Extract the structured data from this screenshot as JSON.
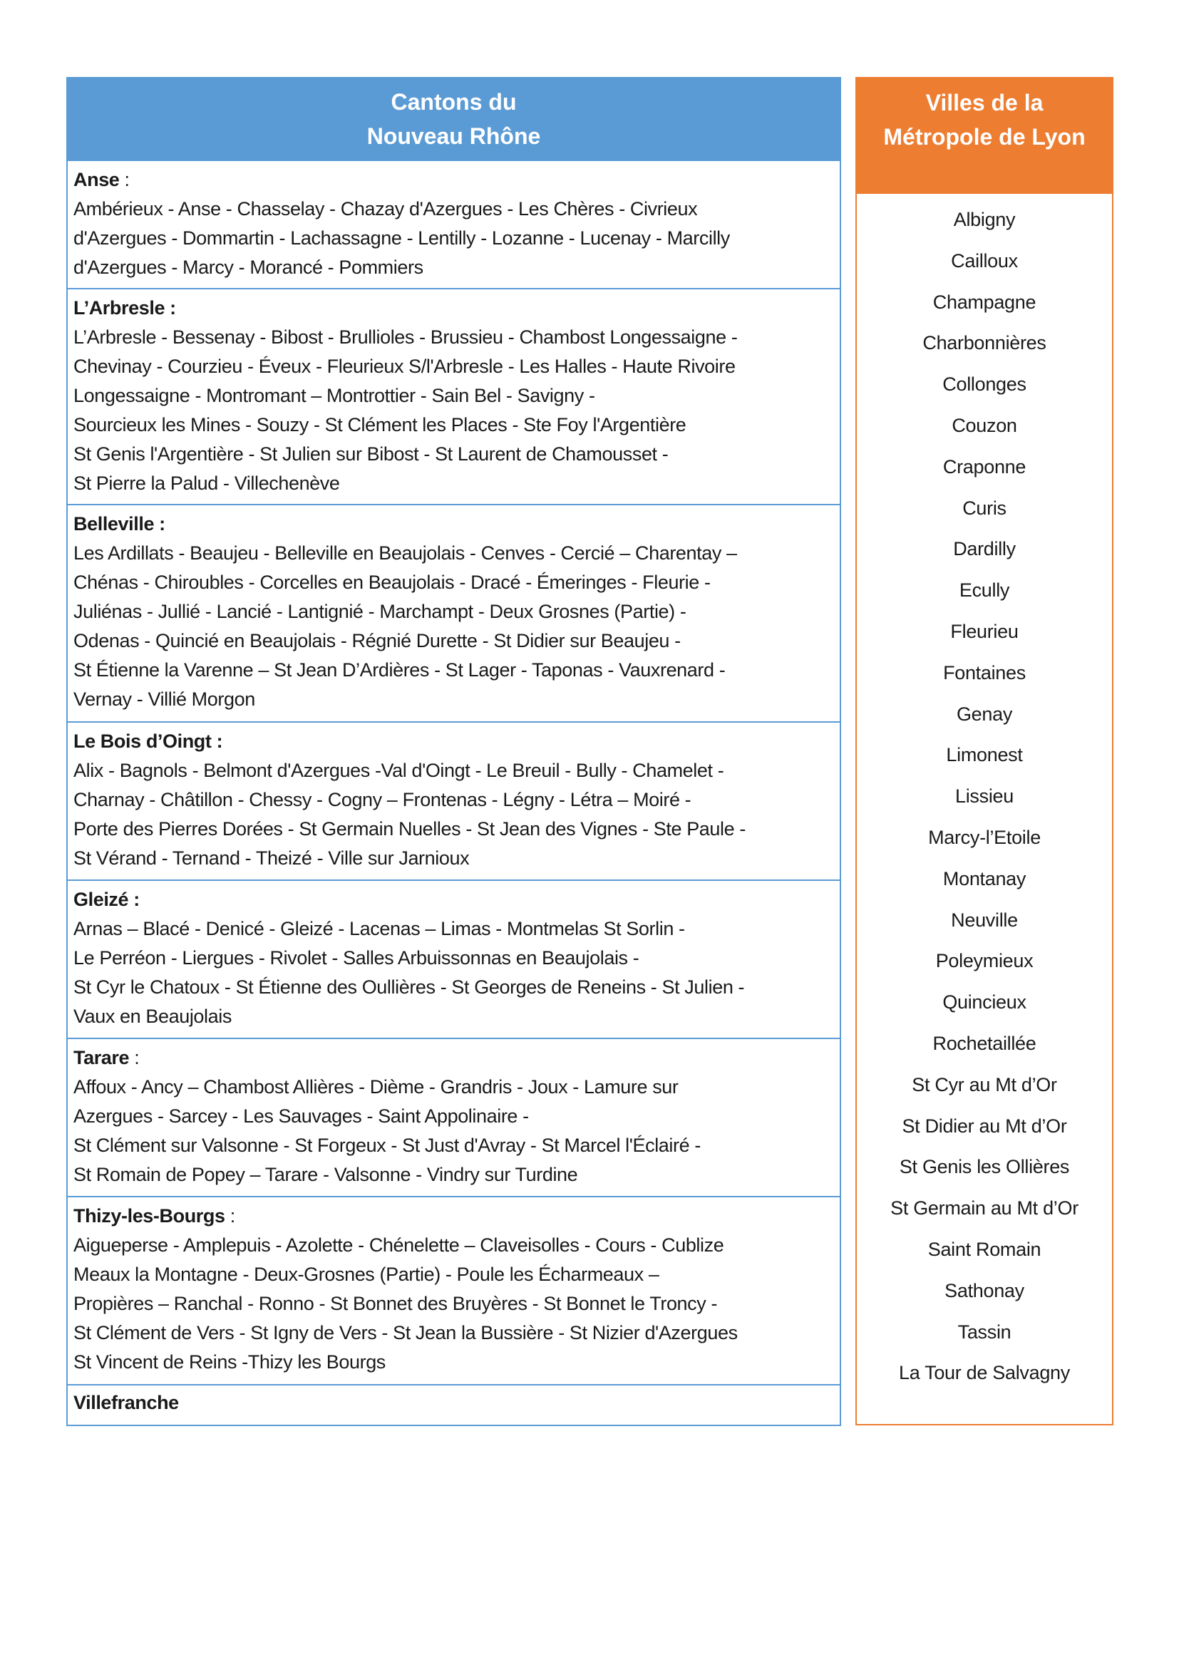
{
  "left_header": {
    "line1": "Cantons du",
    "line2": "Nouveau Rhône"
  },
  "right_header": {
    "line1": "Villes de la",
    "line2": "Métropole de Lyon"
  },
  "colors": {
    "left_accent": "#5b9bd5",
    "right_accent": "#ed7d31"
  },
  "cantons": [
    {
      "name": "Anse",
      "sep": " :",
      "sep_bold": false,
      "lines": [
        "Ambérieux - Anse - Chasselay - Chazay d'Azergues - Les Chères - Civrieux",
        "d'Azergues - Dommartin - Lachassagne - Lentilly - Lozanne - Lucenay - Marcilly",
        "d'Azergues - Marcy - Morancé - Pommiers"
      ]
    },
    {
      "name": "L’Arbresle",
      "sep": " :",
      "sep_bold": true,
      "lines": [
        "L’Arbresle - Bessenay - Bibost - Brullioles - Brussieu - Chambost Longessaigne -",
        "Chevinay - Courzieu - Éveux - Fleurieux S/l'Arbresle - Les Halles - Haute Rivoire",
        "Longessaigne - Montromant – Montrottier - Sain Bel - Savigny -",
        "Sourcieux les Mines - Souzy - St Clément les Places - Ste Foy l'Argentière",
        "St Genis l'Argentière - St Julien sur Bibost -  St Laurent de Chamousset -",
        "St Pierre la Palud - Villechenève"
      ]
    },
    {
      "name": "Belleville",
      "sep": " :",
      "sep_bold": true,
      "lines": [
        "Les Ardillats - Beaujeu - Belleville en Beaujolais - Cenves - Cercié – Charentay –",
        "Chénas - Chiroubles - Corcelles en Beaujolais - Dracé - Émeringes - Fleurie -",
        "Juliénas - Jullié - Lancié - Lantignié - Marchampt - Deux Grosnes (Partie) -",
        "Odenas - Quincié en Beaujolais - Régnié Durette - St Didier sur Beaujeu -",
        "St Étienne la Varenne – St Jean D’Ardières - St Lager - Taponas - Vauxrenard -",
        "Vernay - Villié Morgon"
      ]
    },
    {
      "name": "Le Bois d’Oingt",
      "sep": " :",
      "sep_bold": true,
      "lines": [
        "Alix - Bagnols - Belmont d'Azergues -Val d'Oingt - Le Breuil - Bully - Chamelet -",
        "Charnay - Châtillon - Chessy - Cogny – Frontenas - Légny - Létra – Moiré -",
        "Porte des Pierres Dorées - St Germain Nuelles - St Jean des Vignes - Ste Paule -",
        "St Vérand - Ternand - Theizé - Ville sur Jarnioux"
      ]
    },
    {
      "name": "Gleizé",
      "sep": " :",
      "sep_bold": true,
      "lines": [
        "Arnas – Blacé - Denicé - Gleizé - Lacenas –  Limas - Montmelas St Sorlin -",
        "Le Perréon - Liergues - Rivolet - Salles Arbuissonnas en Beaujolais -",
        "St Cyr le Chatoux - St Étienne des Oullières - St Georges de Reneins - St Julien -",
        "Vaux en Beaujolais"
      ]
    },
    {
      "name": "Tarare",
      "sep": " :",
      "sep_bold": false,
      "lines": [
        "Affoux - Ancy – Chambost Allières - Dième - Grandris - Joux - Lamure sur",
        "Azergues - Sarcey - Les Sauvages - Saint Appolinaire -",
        "St Clément sur Valsonne - St Forgeux - St Just d'Avray - St Marcel l'Éclairé -",
        "St Romain de Popey – Tarare - Valsonne - Vindry sur Turdine"
      ]
    },
    {
      "name": "Thizy-les-Bourgs",
      "sep": " :",
      "sep_bold": false,
      "lines": [
        "Aigueperse - Amplepuis - Azolette - Chénelette – Claveisolles - Cours - Cublize",
        "Meaux la Montagne - Deux-Grosnes (Partie) - Poule les Écharmeaux –",
        "Propières – Ranchal - Ronno - St Bonnet des Bruyères - St Bonnet le Troncy -",
        "St Clément de Vers - St Igny de Vers - St Jean la Bussière - St Nizier d'Azergues",
        "St Vincent de Reins -Thizy les Bourgs"
      ]
    },
    {
      "name": "Villefranche",
      "sep": "",
      "sep_bold": true,
      "lines": []
    }
  ],
  "villes": [
    "Albigny",
    "Cailloux",
    "Champagne",
    "Charbonnières",
    "Collonges",
    "Couzon",
    "Craponne",
    "Curis",
    "Dardilly",
    "Ecully",
    "Fleurieu",
    "Fontaines",
    "Genay",
    "Limonest",
    "Lissieu",
    "Marcy-l’Etoile",
    "Montanay",
    "Neuville",
    "Poleymieux",
    "Quincieux",
    "Rochetaillée",
    "St Cyr au Mt d’Or",
    "St Didier au Mt d’Or",
    "St Genis les Ollières",
    "St Germain au Mt d’Or",
    "Saint Romain",
    "Sathonay",
    "Tassin",
    "La Tour de Salvagny"
  ]
}
